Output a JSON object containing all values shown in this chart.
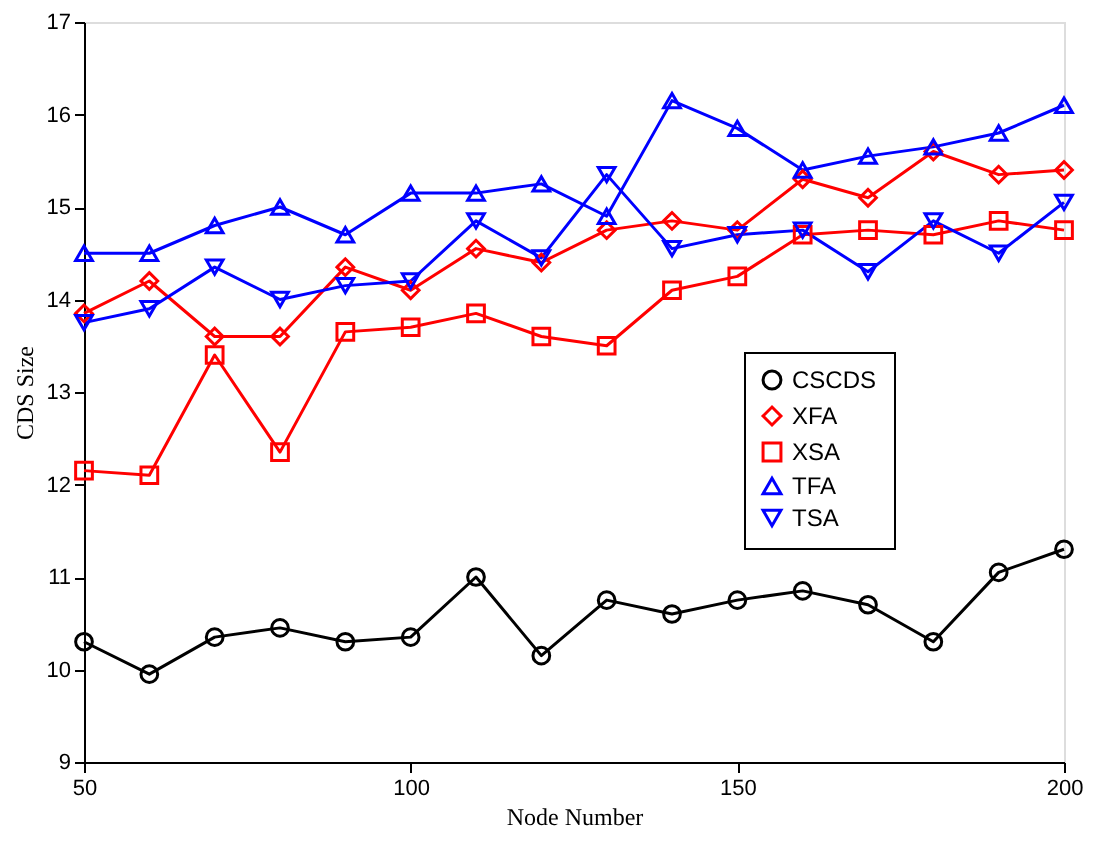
{
  "chart_data": {
    "type": "line",
    "xlabel": "Node Number",
    "ylabel": "CDS Size",
    "x": [
      50,
      60,
      70,
      80,
      90,
      100,
      110,
      120,
      130,
      140,
      150,
      160,
      170,
      180,
      190,
      200
    ],
    "xlim": [
      50,
      200
    ],
    "xticks": [
      50,
      100,
      150,
      200
    ],
    "ylim": [
      9,
      17
    ],
    "yticks": [
      9,
      10,
      11,
      12,
      13,
      14,
      15,
      16,
      17
    ],
    "grid": false,
    "legend": "right",
    "line_style": "solid",
    "series": [
      {
        "name": "CSCDS",
        "color": "#000000",
        "marker": "circle",
        "values": [
          10.3,
          9.95,
          10.35,
          10.45,
          10.3,
          10.35,
          11.0,
          10.15,
          10.75,
          10.6,
          10.75,
          10.85,
          10.7,
          10.3,
          11.05,
          11.3
        ]
      },
      {
        "name": "XFA",
        "color": "#ff0000",
        "marker": "diamond",
        "values": [
          13.85,
          14.2,
          13.6,
          13.6,
          14.35,
          14.1,
          14.55,
          14.4,
          14.75,
          14.85,
          14.75,
          15.3,
          15.1,
          15.6,
          15.35,
          15.4
        ]
      },
      {
        "name": "XSA",
        "color": "#ff0000",
        "marker": "square",
        "values": [
          12.15,
          12.1,
          13.4,
          12.35,
          13.65,
          13.7,
          13.85,
          13.6,
          13.5,
          14.1,
          14.25,
          14.7,
          14.75,
          14.7,
          14.85,
          14.75
        ]
      },
      {
        "name": "TFA",
        "color": "#0000ff",
        "marker": "triangle",
        "values": [
          14.5,
          14.5,
          14.8,
          15.0,
          14.7,
          15.15,
          15.15,
          15.25,
          14.9,
          16.15,
          15.85,
          15.4,
          15.55,
          15.65,
          15.8,
          16.1
        ]
      },
      {
        "name": "TSA",
        "color": "#0000ff",
        "marker": "triangle-down",
        "values": [
          13.75,
          13.9,
          14.35,
          14.0,
          14.15,
          14.2,
          14.85,
          14.45,
          15.35,
          14.55,
          14.7,
          14.75,
          14.3,
          14.85,
          14.5,
          15.05
        ]
      }
    ]
  }
}
